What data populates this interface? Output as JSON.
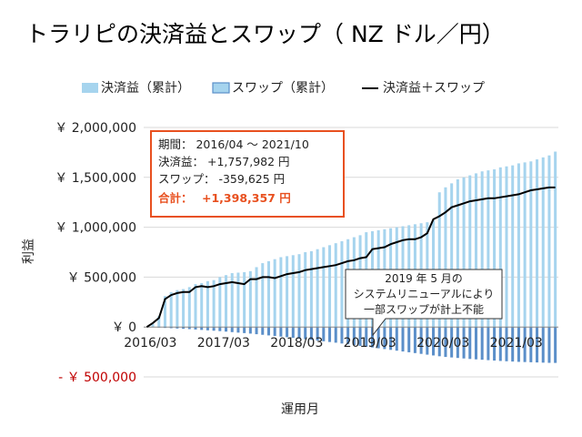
{
  "chart_data": {
    "type": "bar",
    "title": "トラリピの決済益とスワップ（ NZ ドル／円）",
    "xlabel": "運用月",
    "ylabel": "利益",
    "ylim": [
      -500000,
      2000000
    ],
    "y_ticks": [
      {
        "value": 2000000,
        "label": "￥ 2,000,000"
      },
      {
        "value": 1500000,
        "label": "￥ 1,500,000"
      },
      {
        "value": 1000000,
        "label": "￥ 1,000,000"
      },
      {
        "value": 500000,
        "label": "￥ 500,000"
      },
      {
        "value": 0,
        "label": "￥ 0"
      },
      {
        "value": -500000,
        "label": "- ￥ 500,000"
      }
    ],
    "x_tick_labels": [
      {
        "index": 0,
        "label": "2016/03"
      },
      {
        "index": 12,
        "label": "2017/03"
      },
      {
        "index": 24,
        "label": "2018/03"
      },
      {
        "index": 36,
        "label": "2019/03"
      },
      {
        "index": 48,
        "label": "2020/03"
      },
      {
        "index": 60,
        "label": "2021/03"
      }
    ],
    "legend": {
      "position": "top",
      "items": [
        "決済益（累計）",
        "スワップ（累計）",
        "決済益＋スワップ"
      ]
    },
    "categories": [
      "2016/03",
      "2016/04",
      "2016/05",
      "2016/06",
      "2016/07",
      "2016/08",
      "2016/09",
      "2016/10",
      "2016/11",
      "2016/12",
      "2017/01",
      "2017/02",
      "2017/03",
      "2017/04",
      "2017/05",
      "2017/06",
      "2017/07",
      "2017/08",
      "2017/09",
      "2017/10",
      "2017/11",
      "2017/12",
      "2018/01",
      "2018/02",
      "2018/03",
      "2018/04",
      "2018/05",
      "2018/06",
      "2018/07",
      "2018/08",
      "2018/09",
      "2018/10",
      "2018/11",
      "2018/12",
      "2019/01",
      "2019/02",
      "2019/03",
      "2019/04",
      "2019/05",
      "2019/06",
      "2019/07",
      "2019/08",
      "2019/09",
      "2019/10",
      "2019/11",
      "2019/12",
      "2020/01",
      "2020/02",
      "2020/03",
      "2020/04",
      "2020/05",
      "2020/06",
      "2020/07",
      "2020/08",
      "2020/09",
      "2020/10",
      "2020/11",
      "2020/12",
      "2021/01",
      "2021/02",
      "2021/03",
      "2021/04",
      "2021/05",
      "2021/06",
      "2021/07",
      "2021/08",
      "2021/09",
      "2021/10"
    ],
    "series": [
      {
        "name": "決済益（累計）",
        "color": "#a6d4ee",
        "values": [
          0,
          30000,
          110000,
          310000,
          350000,
          370000,
          380000,
          400000,
          430000,
          440000,
          460000,
          470000,
          500000,
          520000,
          540000,
          545000,
          550000,
          560000,
          600000,
          640000,
          660000,
          680000,
          700000,
          710000,
          720000,
          730000,
          750000,
          760000,
          780000,
          800000,
          820000,
          840000,
          860000,
          880000,
          900000,
          920000,
          950000,
          960000,
          970000,
          980000,
          990000,
          1000000,
          1010000,
          1020000,
          1030000,
          1040000,
          1050000,
          1070000,
          1350000,
          1400000,
          1440000,
          1480000,
          1500000,
          1520000,
          1540000,
          1560000,
          1570000,
          1580000,
          1600000,
          1610000,
          1620000,
          1640000,
          1650000,
          1660000,
          1680000,
          1700000,
          1720000,
          1757982
        ]
      },
      {
        "name": "スワップ（累計）",
        "color": "#5b8fc9",
        "values": [
          0,
          -3000,
          -6000,
          -9000,
          -12000,
          -15000,
          -18000,
          -21000,
          -25000,
          -29000,
          -33000,
          -37000,
          -41000,
          -46000,
          -51000,
          -56000,
          -61000,
          -66000,
          -72000,
          -78000,
          -84000,
          -90000,
          -96000,
          -102000,
          -108000,
          -115000,
          -122000,
          -129000,
          -136000,
          -143000,
          -150000,
          -157000,
          -165000,
          -173000,
          -181000,
          -189000,
          -197000,
          -205000,
          -213000,
          -221000,
          -229000,
          -237000,
          -245000,
          -253000,
          -261000,
          -269000,
          -277000,
          -285000,
          -293000,
          -300000,
          -305000,
          -310000,
          -315000,
          -320000,
          -324000,
          -328000,
          -332000,
          -336000,
          -340000,
          -343000,
          -346000,
          -349000,
          -351000,
          -353000,
          -355000,
          -357000,
          -359000,
          -359625
        ]
      },
      {
        "name": "決済益＋スワップ",
        "color": "#000000",
        "values": [
          0,
          40000,
          90000,
          280000,
          320000,
          340000,
          350000,
          350000,
          400000,
          410000,
          400000,
          410000,
          430000,
          440000,
          450000,
          440000,
          430000,
          480000,
          480000,
          500000,
          500000,
          490000,
          510000,
          530000,
          540000,
          550000,
          570000,
          580000,
          590000,
          600000,
          610000,
          620000,
          640000,
          660000,
          670000,
          690000,
          700000,
          780000,
          790000,
          800000,
          830000,
          850000,
          870000,
          880000,
          880000,
          900000,
          940000,
          1080000,
          1110000,
          1150000,
          1200000,
          1220000,
          1240000,
          1260000,
          1270000,
          1280000,
          1290000,
          1290000,
          1300000,
          1310000,
          1320000,
          1330000,
          1350000,
          1370000,
          1380000,
          1390000,
          1398357,
          1398357
        ]
      }
    ],
    "summary_box": {
      "lines": [
        "期間： 2016/04 ～ 2021/10",
        "決済益： +1,757,982 円",
        "スワップ： -359,625 円"
      ],
      "total_label": "合計：",
      "total_value": "+1,398,357 円",
      "border_color": "#e8501f"
    },
    "annotation": {
      "lines": [
        "2019 年 5 月の",
        "システムリニューアルにより",
        "一部スワップが計上不能"
      ]
    }
  }
}
